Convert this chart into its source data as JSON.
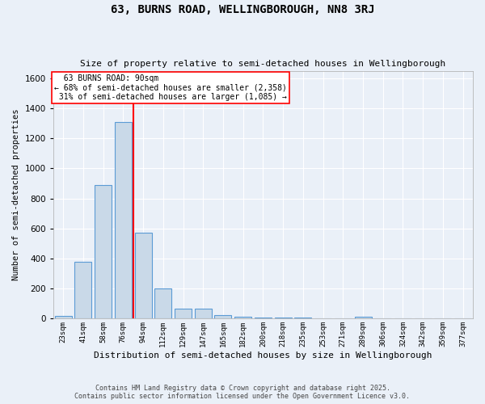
{
  "title": "63, BURNS ROAD, WELLINGBOROUGH, NN8 3RJ",
  "subtitle": "Size of property relative to semi-detached houses in Wellingborough",
  "xlabel": "Distribution of semi-detached houses by size in Wellingborough",
  "ylabel": "Number of semi-detached properties",
  "bin_labels": [
    "23sqm",
    "41sqm",
    "58sqm",
    "76sqm",
    "94sqm",
    "112sqm",
    "129sqm",
    "147sqm",
    "165sqm",
    "182sqm",
    "200sqm",
    "218sqm",
    "235sqm",
    "253sqm",
    "271sqm",
    "289sqm",
    "306sqm",
    "324sqm",
    "342sqm",
    "359sqm",
    "377sqm"
  ],
  "bar_values": [
    20,
    380,
    890,
    1310,
    570,
    200,
    65,
    65,
    25,
    15,
    5,
    5,
    5,
    0,
    0,
    15,
    0,
    0,
    0,
    0,
    0
  ],
  "bar_color": "#c9d9e8",
  "bar_edge_color": "#5b9bd5",
  "property_sqm": 90,
  "pct_smaller": 68,
  "count_smaller": 2358,
  "pct_larger": 31,
  "count_larger": 1085,
  "annotation_label": "63 BURNS ROAD: 90sqm",
  "ylim": [
    0,
    1650
  ],
  "background_color": "#eaf0f8",
  "grid_color": "#ffffff",
  "footer_line1": "Contains HM Land Registry data © Crown copyright and database right 2025.",
  "footer_line2": "Contains public sector information licensed under the Open Government Licence v3.0."
}
